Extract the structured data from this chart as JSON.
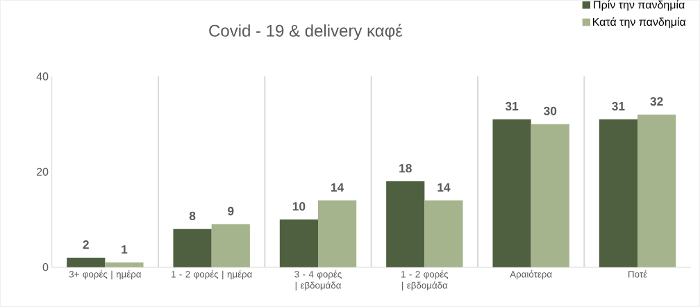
{
  "chart_data": {
    "type": "bar",
    "title": "Covid - 19 & delivery καφέ",
    "categories": [
      "3+ φορές | ημέρα",
      "1 - 2 φορές | ημέρα",
      "3 - 4 φορές | εβδομάδα",
      "1 - 2 φορές | εβδομάδα",
      "Αραιότερα",
      "Ποτέ"
    ],
    "series": [
      {
        "name": "Πρίν την πανδημία",
        "color": "#4f6040",
        "values": [
          2,
          8,
          10,
          18,
          31,
          31
        ]
      },
      {
        "name": "Κατά την πανδημία",
        "color": "#a5b48c",
        "values": [
          1,
          9,
          14,
          14,
          30,
          32
        ]
      }
    ],
    "ylim": [
      0,
      40
    ],
    "yticks": [
      0,
      20,
      40
    ],
    "grid": "x",
    "legend": "top right",
    "data_labels": true
  }
}
